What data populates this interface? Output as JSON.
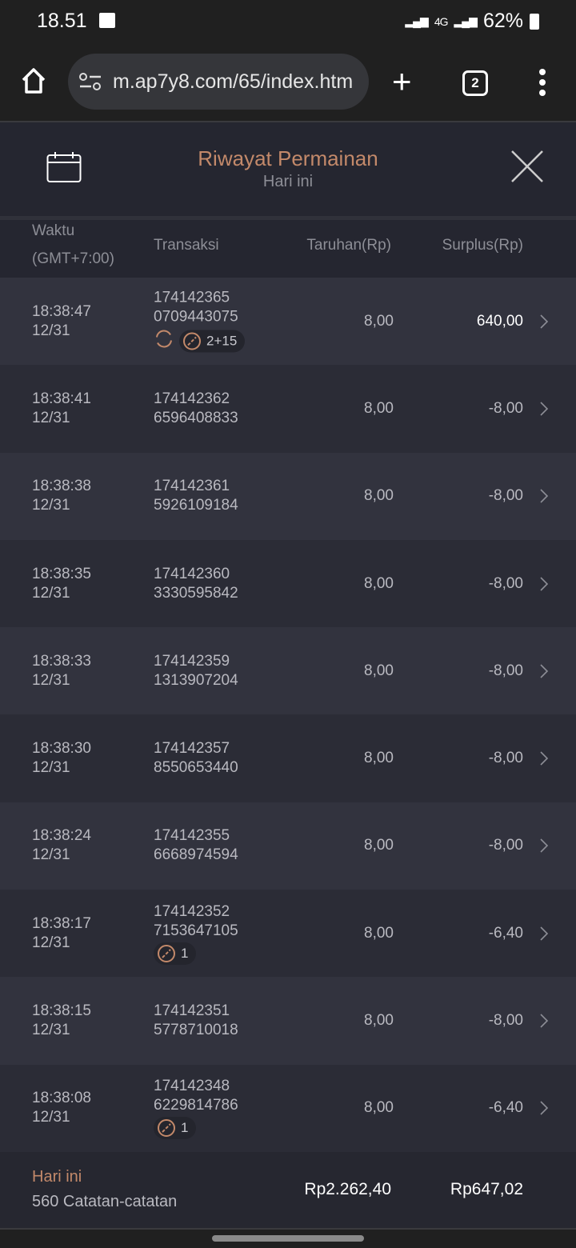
{
  "status_bar": {
    "time": "18.51",
    "network": "4G",
    "battery": "62%"
  },
  "browser": {
    "url": "m.ap7y8.com/65/index.htm",
    "tab_count": "2"
  },
  "header": {
    "title": "Riwayat Permainan",
    "subtitle": "Hari ini"
  },
  "columns": {
    "time_line1": "Waktu",
    "time_line2": "(GMT+7:00)",
    "transaction": "Transaksi",
    "bet": "Taruhan(Rp)",
    "surplus": "Surplus(Rp)"
  },
  "rows": [
    {
      "time": "18:38:47",
      "date": "12/31",
      "tx1": "174142365",
      "tx2": "0709443075",
      "bet": "8,00",
      "surplus": "640,00",
      "win": true,
      "respin": true,
      "badge": "2+15"
    },
    {
      "time": "18:38:41",
      "date": "12/31",
      "tx1": "174142362",
      "tx2": "6596408833",
      "bet": "8,00",
      "surplus": "-8,00"
    },
    {
      "time": "18:38:38",
      "date": "12/31",
      "tx1": "174142361",
      "tx2": "5926109184",
      "bet": "8,00",
      "surplus": "-8,00"
    },
    {
      "time": "18:38:35",
      "date": "12/31",
      "tx1": "174142360",
      "tx2": "3330595842",
      "bet": "8,00",
      "surplus": "-8,00"
    },
    {
      "time": "18:38:33",
      "date": "12/31",
      "tx1": "174142359",
      "tx2": "1313907204",
      "bet": "8,00",
      "surplus": "-8,00"
    },
    {
      "time": "18:38:30",
      "date": "12/31",
      "tx1": "174142357",
      "tx2": "8550653440",
      "bet": "8,00",
      "surplus": "-8,00"
    },
    {
      "time": "18:38:24",
      "date": "12/31",
      "tx1": "174142355",
      "tx2": "6668974594",
      "bet": "8,00",
      "surplus": "-8,00"
    },
    {
      "time": "18:38:17",
      "date": "12/31",
      "tx1": "174142352",
      "tx2": "7153647105",
      "bet": "8,00",
      "surplus": "-6,40",
      "badge": "1"
    },
    {
      "time": "18:38:15",
      "date": "12/31",
      "tx1": "174142351",
      "tx2": "5778710018",
      "bet": "8,00",
      "surplus": "-8,00"
    },
    {
      "time": "18:38:08",
      "date": "12/31",
      "tx1": "174142348",
      "tx2": "6229814786",
      "bet": "8,00",
      "surplus": "-6,40",
      "badge": "1"
    }
  ],
  "footer": {
    "period": "Hari ini",
    "records": "560 Catatan-catatan",
    "total_bet": "Rp2.262,40",
    "total_surplus": "Rp647,02"
  },
  "colors": {
    "accent": "#c3896a",
    "row_odd": "#32333e",
    "row_even": "#2b2c36",
    "header_bg": "#252630"
  }
}
